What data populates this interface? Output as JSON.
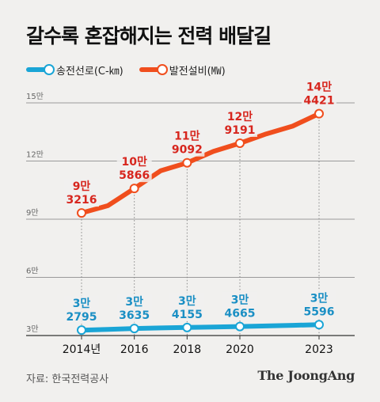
{
  "title": "갈수록 혼잡해지는 전력 배달길",
  "legend": [
    {
      "label": "송전선로(C-㎞)",
      "color": "#1aa5d6"
    },
    {
      "label": "발전설비(㎿)",
      "color": "#f04e1d"
    }
  ],
  "source": "자료: 한국전력공사",
  "logo": "The JoongAng",
  "chart_data": {
    "type": "line",
    "x": [
      2014,
      2015,
      2016,
      2017,
      2018,
      2019,
      2020,
      2021,
      2022,
      2023
    ],
    "x_tick_labels": [
      "2014년",
      "2016",
      "2018",
      "2020",
      "2023"
    ],
    "x_tick_values": [
      2014,
      2016,
      2018,
      2020,
      2023
    ],
    "y_tick_labels": [
      "3만",
      "6만",
      "9만",
      "12만",
      "15만"
    ],
    "y_tick_values": [
      30000,
      60000,
      90000,
      120000,
      150000
    ],
    "ylim": [
      30000,
      150000
    ],
    "grid": "horizontal",
    "series": [
      {
        "name": "송전선로(C-㎞)",
        "color": "#1aa5d6",
        "values": [
          32795,
          33200,
          33635,
          33900,
          34155,
          34400,
          34665,
          34950,
          35250,
          35596
        ],
        "marked_x": [
          2014,
          2016,
          2018,
          2020,
          2023
        ],
        "labels": [
          [
            "3만",
            "2795"
          ],
          [
            "3만",
            "3635"
          ],
          [
            "3만",
            "4155"
          ],
          [
            "3만",
            "4665"
          ],
          [
            "3만",
            "5596"
          ]
        ]
      },
      {
        "name": "발전설비(㎿)",
        "color": "#f04e1d",
        "values": [
          93216,
          97000,
          105866,
          115000,
          119092,
          125000,
          129191,
          134000,
          138000,
          144421
        ],
        "marked_x": [
          2014,
          2016,
          2018,
          2020,
          2023
        ],
        "labels": [
          [
            "9만",
            "3216"
          ],
          [
            "10만",
            "5866"
          ],
          [
            "11만",
            "9092"
          ],
          [
            "12만",
            "9191"
          ],
          [
            "14만",
            "4421"
          ]
        ]
      }
    ]
  }
}
